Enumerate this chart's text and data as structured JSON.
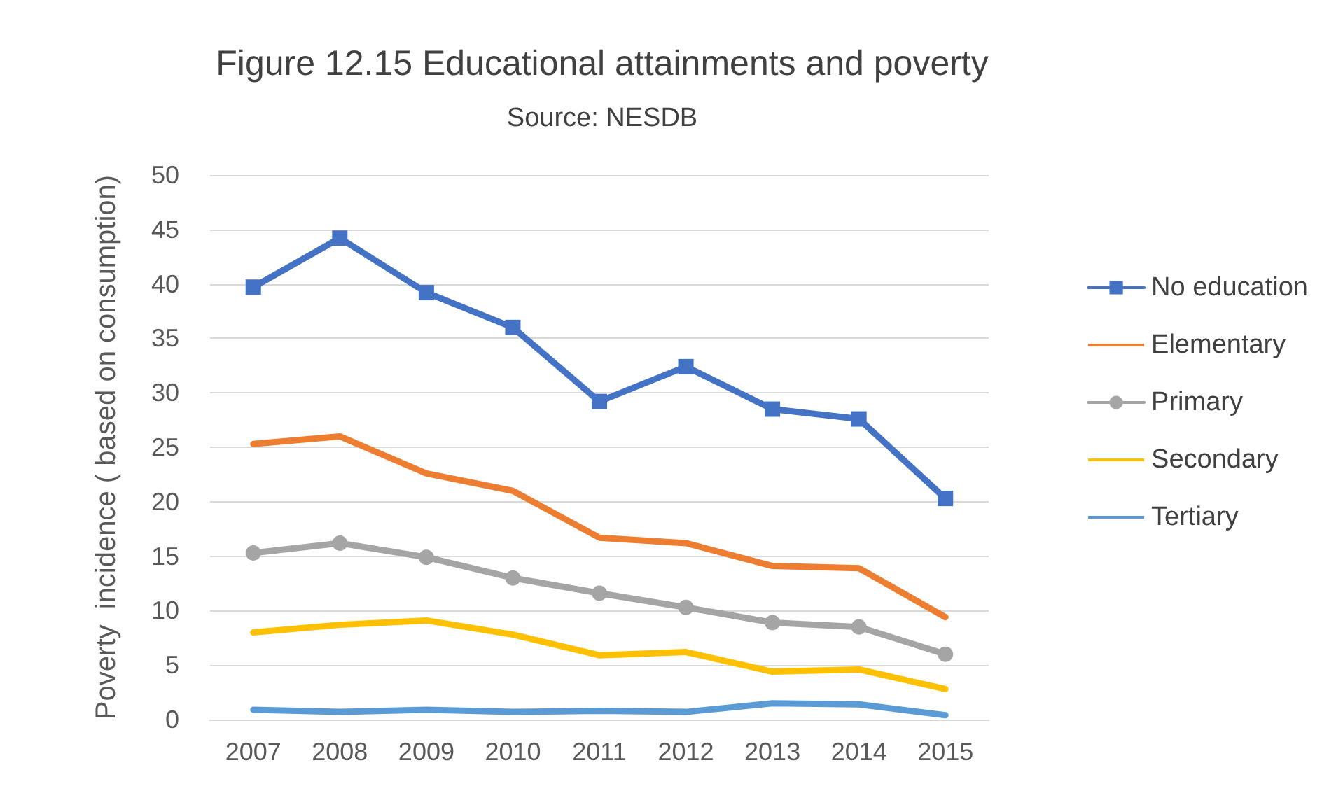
{
  "chart_data": {
    "type": "line",
    "title": "Figure 12.15 Educational attainments and poverty",
    "subtitle": "Source: NESDB",
    "ylabel": "Poverty  incidence ( based on consumption)",
    "categories": [
      "2007",
      "2008",
      "2009",
      "2010",
      "2011",
      "2012",
      "2013",
      "2014",
      "2015"
    ],
    "series": [
      {
        "name": "No education",
        "color": "#4472c4",
        "marker": "square",
        "values": [
          39.7,
          44.2,
          39.2,
          36.0,
          29.2,
          32.4,
          28.5,
          27.6,
          20.3
        ]
      },
      {
        "name": "Elementary",
        "color": "#ed7d31",
        "marker": "none",
        "values": [
          25.3,
          26.0,
          22.6,
          21.0,
          16.7,
          16.2,
          14.1,
          13.9,
          9.4
        ]
      },
      {
        "name": "Primary",
        "color": "#a5a5a5",
        "marker": "circle",
        "values": [
          15.3,
          16.2,
          14.9,
          13.0,
          11.6,
          10.3,
          8.9,
          8.5,
          6.0
        ]
      },
      {
        "name": "Secondary",
        "color": "#ffc000",
        "marker": "none",
        "values": [
          8.0,
          8.7,
          9.1,
          7.8,
          5.9,
          6.2,
          4.4,
          4.6,
          2.8
        ]
      },
      {
        "name": "Tertiary",
        "color": "#5b9bd5",
        "marker": "none",
        "values": [
          0.9,
          0.7,
          0.9,
          0.7,
          0.8,
          0.7,
          1.5,
          1.4,
          0.4
        ]
      }
    ],
    "ylim": [
      0,
      50
    ],
    "yticks": [
      0,
      5,
      10,
      15,
      20,
      25,
      30,
      35,
      40,
      45,
      50
    ],
    "grid": "y",
    "legend": "right"
  }
}
